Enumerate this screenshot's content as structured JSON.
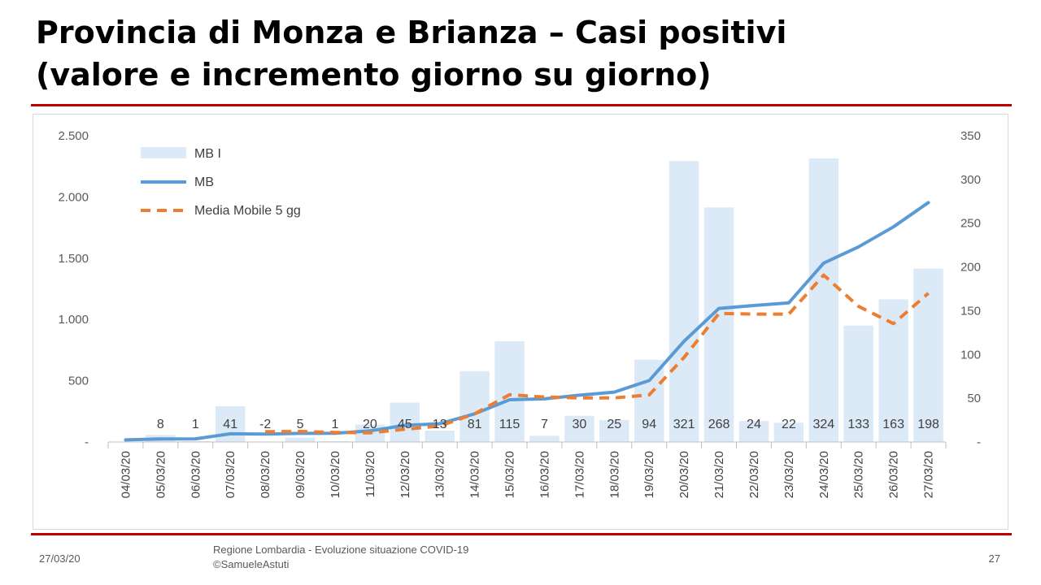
{
  "slide": {
    "title_line1": "Provincia di Monza e Brianza – Casi positivi",
    "title_line2": "(valore e incremento giorno su giorno)",
    "footer_date": "27/03/20",
    "footer_line1": "Regione Lombardia - Evoluzione situazione COVID-19",
    "footer_line2": "©SamueleAstuti",
    "page_number": "27"
  },
  "chart_data": {
    "type": "bar",
    "categories": [
      "04/03/20",
      "05/03/20",
      "06/03/20",
      "07/03/20",
      "08/03/20",
      "09/03/20",
      "10/03/20",
      "11/03/20",
      "12/03/20",
      "13/03/20",
      "14/03/20",
      "15/03/20",
      "16/03/20",
      "17/03/20",
      "18/03/20",
      "19/03/20",
      "20/03/20",
      "21/03/20",
      "22/03/20",
      "23/03/20",
      "24/03/20",
      "25/03/20",
      "26/03/20",
      "27/03/20"
    ],
    "series": [
      {
        "name": "MB I",
        "type": "bar",
        "axis": "right",
        "color": "#dce9f6",
        "values": [
          null,
          8,
          1,
          41,
          -2,
          5,
          1,
          20,
          45,
          13,
          81,
          115,
          7,
          30,
          25,
          94,
          321,
          268,
          24,
          22,
          324,
          133,
          163,
          198
        ],
        "labels": [
          "",
          "8",
          "1",
          "41",
          "-2",
          "5",
          "1",
          "20",
          "45",
          "13",
          "81",
          "115",
          "7",
          "30",
          "25",
          "94",
          "321",
          "268",
          "24",
          "22",
          "324",
          "133",
          "163",
          "198"
        ]
      },
      {
        "name": "MB",
        "type": "line",
        "axis": "left",
        "color": "#5b9bd5",
        "values": [
          17,
          25,
          26,
          67,
          65,
          70,
          71,
          91,
          136,
          149,
          230,
          345,
          352,
          382,
          407,
          501,
          822,
          1090,
          1114,
          1136,
          1460,
          1593,
          1756,
          1954
        ]
      },
      {
        "name": "Media Mobile 5 gg",
        "type": "line",
        "style": "dashed",
        "axis": "left",
        "color": "#ed7d31",
        "values": [
          null,
          null,
          null,
          null,
          84,
          86,
          78,
          75,
          104,
          130,
          230,
          386,
          367,
          360,
          360,
          384,
          690,
          1049,
          1044,
          1044,
          1362,
          1107,
          966,
          1214
        ]
      }
    ],
    "y_left": {
      "ticks": [
        "2.500",
        "2.000",
        "1.500",
        "1.000",
        "500",
        "-"
      ],
      "tick_values": [
        2500,
        2000,
        1500,
        1000,
        500,
        0
      ],
      "range": [
        0,
        2500
      ]
    },
    "y_right": {
      "ticks": [
        "350",
        "300",
        "250",
        "200",
        "150",
        "100",
        "50",
        "-"
      ],
      "tick_values": [
        350,
        300,
        250,
        200,
        150,
        100,
        50,
        0
      ],
      "range": [
        0,
        350
      ]
    },
    "grid": false,
    "legend": "top-left"
  }
}
